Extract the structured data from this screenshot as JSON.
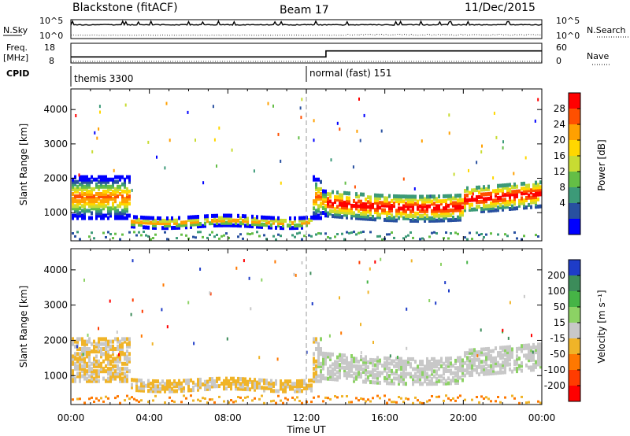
{
  "header": {
    "title": "Blackstone (fitACF)",
    "beam": "Beam 17",
    "date": "11/Dec/2015"
  },
  "top_panels": {
    "nsky_label": "N.Sky",
    "nsky_ticks": [
      "10^5",
      "10^0"
    ],
    "nsearch_label": "N.Search",
    "nsearch_ticks": [
      "10^5",
      "10^0"
    ],
    "freq_label_1": "Freq.",
    "freq_label_2": "[MHz]",
    "freq_ticks": [
      "18",
      "8"
    ],
    "nave_label": "Nave",
    "nave_ticks": [
      "60",
      "0"
    ],
    "cpid_label": "CPID",
    "cpid_segments": [
      {
        "start_hour": 0,
        "label": "themis 3300"
      },
      {
        "start_hour": 12,
        "label": "normal (fast) 151"
      }
    ],
    "freq_series": [
      {
        "hour": 0,
        "mhz": 10.5
      },
      {
        "hour": 13.0,
        "mhz": 10.5
      },
      {
        "hour": 13.0,
        "mhz": 14.5
      },
      {
        "hour": 24,
        "mhz": 14.5
      }
    ]
  },
  "chart_data": [
    {
      "type": "heatmap",
      "name_hint": "power",
      "ylabel": "Slant Range [km]",
      "yticks": [
        1000,
        2000,
        3000,
        4000
      ],
      "ylim": [
        180,
        4600
      ],
      "colorbar_label": "Power [dB]",
      "colorbar_ticks": [
        "28",
        "24",
        "20",
        "16",
        "12",
        "8",
        "4"
      ],
      "colorbar_colors": [
        "#ff0000",
        "#ff5000",
        "#ffa000",
        "#ffd700",
        "#c8dc32",
        "#64be46",
        "#3c9a78",
        "#2850a0",
        "#0000ff"
      ],
      "xlabel": "Time UT",
      "xticks": [
        "00:00",
        "04:00",
        "08:00",
        "12:00",
        "16:00",
        "20:00",
        "00:00"
      ],
      "xlim_hours": [
        0,
        24
      ]
    },
    {
      "type": "heatmap",
      "name_hint": "velocity",
      "ylabel": "Slant Range [km]",
      "yticks": [
        1000,
        2000,
        3000,
        4000
      ],
      "ylim": [
        180,
        4600
      ],
      "colorbar_label": "Velocity [m s⁻¹]",
      "colorbar_ticks": [
        "200",
        "100",
        "50",
        "15",
        "-15",
        "-50",
        "-100",
        "-200"
      ],
      "colorbar_colors": [
        "#1e3cc8",
        "#3c8c5a",
        "#46b446",
        "#8cd264",
        "#c8c8c8",
        "#f0b428",
        "#ff7800",
        "#ff3c00",
        "#ff0000"
      ],
      "xlabel": "Time UT",
      "xticks": [
        "00:00",
        "04:00",
        "08:00",
        "12:00",
        "16:00",
        "20:00",
        "00:00"
      ],
      "xlim_hours": [
        0,
        24
      ]
    }
  ]
}
